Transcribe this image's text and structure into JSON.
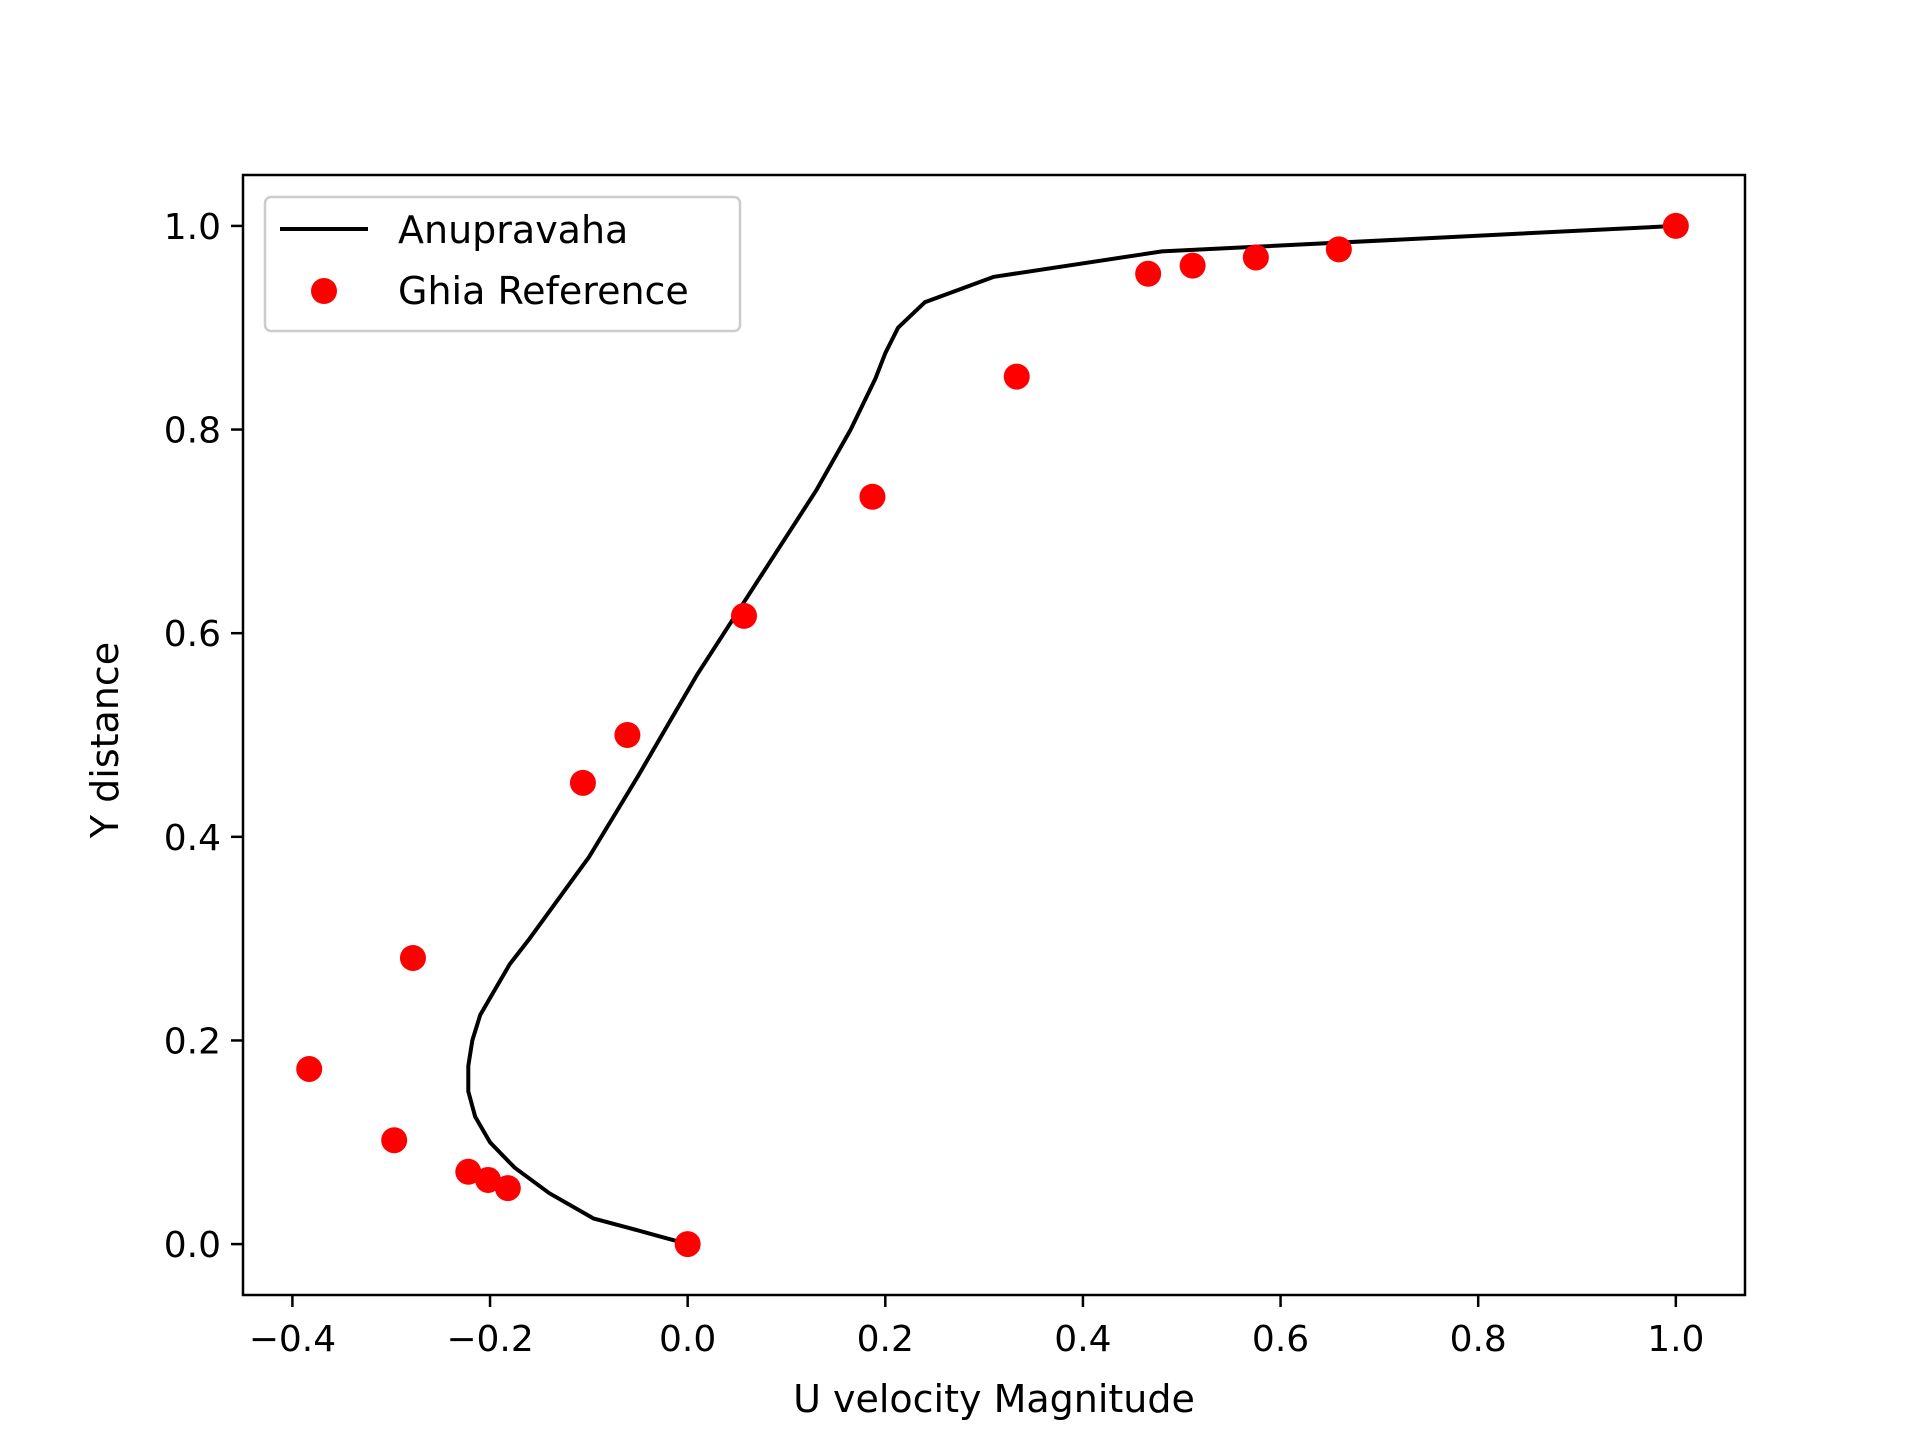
{
  "chart_data": {
    "type": "line",
    "xlabel": "U velocity Magnitude",
    "ylabel": "Y distance",
    "xlim": [
      -0.45,
      1.07
    ],
    "ylim": [
      -0.05,
      1.05
    ],
    "xticks": [
      -0.4,
      -0.2,
      0.0,
      0.2,
      0.4,
      0.6,
      0.8,
      1.0
    ],
    "xtick_labels": [
      "−0.4",
      "−0.2",
      "0.0",
      "0.2",
      "0.4",
      "0.6",
      "0.8",
      "1.0"
    ],
    "yticks": [
      0.0,
      0.2,
      0.4,
      0.6,
      0.8,
      1.0
    ],
    "ytick_labels": [
      "0.0",
      "0.2",
      "0.4",
      "0.6",
      "0.8",
      "1.0"
    ],
    "grid": false,
    "legend_position": "top-left",
    "series": [
      {
        "name": "Anupravaha",
        "type": "line",
        "color": "#000000",
        "x": [
          0.0,
          -0.03,
          -0.06,
          -0.095,
          -0.14,
          -0.175,
          -0.2,
          -0.215,
          -0.222,
          -0.222,
          -0.218,
          -0.21,
          -0.195,
          -0.18,
          -0.16,
          -0.13,
          -0.1,
          -0.075,
          -0.05,
          -0.02,
          0.01,
          0.05,
          0.09,
          0.13,
          0.165,
          0.19,
          0.2,
          0.213,
          0.24,
          0.31,
          0.48,
          1.0
        ],
        "y": [
          0.0,
          0.008,
          0.016,
          0.025,
          0.05,
          0.075,
          0.1,
          0.125,
          0.15,
          0.175,
          0.2,
          0.225,
          0.25,
          0.275,
          0.3,
          0.34,
          0.38,
          0.42,
          0.46,
          0.51,
          0.56,
          0.62,
          0.68,
          0.74,
          0.8,
          0.85,
          0.875,
          0.9,
          0.925,
          0.95,
          0.975,
          1.0
        ]
      },
      {
        "name": "Ghia Reference",
        "type": "scatter",
        "color": "#ff0000",
        "x": [
          0.0,
          -0.182,
          -0.202,
          -0.222,
          -0.297,
          -0.383,
          -0.278,
          -0.106,
          -0.061,
          0.057,
          0.187,
          0.333,
          0.466,
          0.511,
          0.575,
          0.659,
          1.0
        ],
        "y": [
          0.0,
          0.055,
          0.063,
          0.071,
          0.102,
          0.172,
          0.281,
          0.453,
          0.5,
          0.617,
          0.734,
          0.852,
          0.953,
          0.961,
          0.969,
          0.977,
          1.0
        ]
      }
    ]
  }
}
